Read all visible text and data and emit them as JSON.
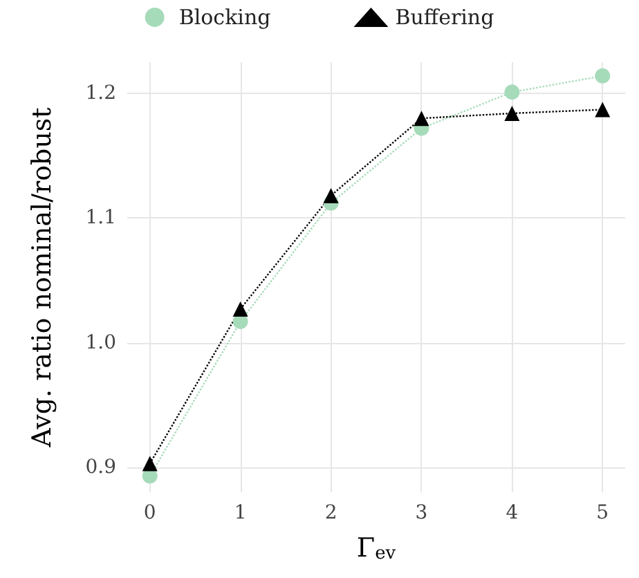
{
  "chart_data": {
    "type": "line",
    "xlabel": "Γ$_{ev}$",
    "ylabel": "Avg. ratio nominal/robust",
    "x": [
      0,
      1,
      2,
      3,
      4,
      5
    ],
    "xlim": [
      -0.25,
      5.25
    ],
    "xticks": [
      0,
      1,
      2,
      3,
      4,
      5
    ],
    "ylim": [
      0.88,
      1.225
    ],
    "yticks": [
      0.9,
      {
        "value": 1.0,
        "label": "1.0"
      },
      1.1,
      1.2
    ],
    "series": [
      {
        "name": "Blocking",
        "color": "#a6dbb9",
        "marker": "circle",
        "values": [
          0.893,
          1.017,
          1.112,
          1.172,
          1.201,
          1.214
        ]
      },
      {
        "name": "Buffering",
        "color": "#000000",
        "marker": "triangle",
        "values": [
          0.903,
          1.027,
          1.118,
          1.18,
          1.184,
          1.187
        ]
      }
    ],
    "line_style": "dotted",
    "grid": true,
    "legend": "top"
  }
}
